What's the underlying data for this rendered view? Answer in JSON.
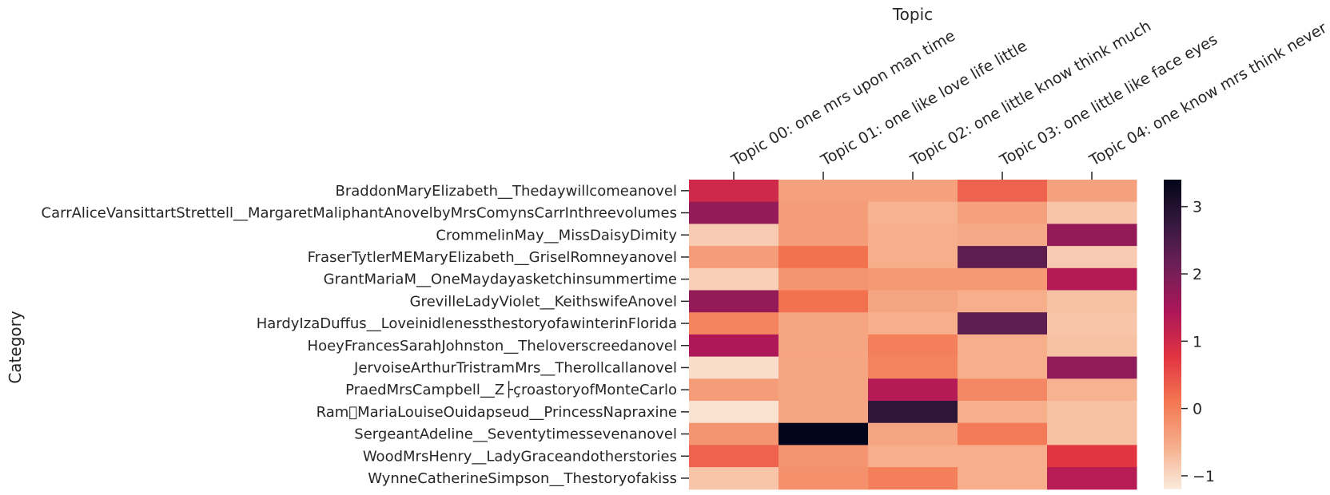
{
  "chart_data": {
    "type": "heatmap",
    "xlabel": "Topic",
    "ylabel": "Category",
    "columns": [
      "Topic 00: one mrs upon man time",
      "Topic 01: one like love life little",
      "Topic 02: one little know think much",
      "Topic 03: one little like face eyes",
      "Topic 04: one know mrs think never"
    ],
    "rows": [
      "BraddonMaryElizabeth__Thedaywillcomeanovel",
      "CarrAliceVansittartStrettell__MargaretMaliphantAnovelbyMrsComynsCarrInthreevolumes",
      "CrommelinMay__MissDaisyDimity",
      "FraserTytlerMEMaryElizabeth__GriselRomneyanovel",
      "GrantMariaM__OneMaydayasketchinsummertime",
      "GrevilleLadyViolet__KeithswifeAnovel",
      "HardyIzaDuffus__LoveinidlenessthestoryofawinterinFlorida",
      "HoeyFrancesSarahJohnston__Theloverscreedanovel",
      "JervoiseArthurTristramMrs__Therollcallanovel",
      "PraedMrsCampbell__Z├çroastoryofMonteCarlo",
      "Ram\u0000MariaLouiseOuidapseud__PrincessNapraxine",
      "SergeantAdeline__Seventytimessevenanovel",
      "WoodMrsHenry__LadyGraceandotherstories",
      "WynneCatherineSimpson__Thestoryofakiss"
    ],
    "values": [
      [
        1.0,
        -0.4,
        -0.4,
        0.3,
        -0.4
      ],
      [
        1.7,
        -0.35,
        -0.6,
        -0.4,
        -0.8
      ],
      [
        -0.85,
        -0.35,
        -0.55,
        -0.5,
        1.7
      ],
      [
        -0.35,
        0.15,
        -0.55,
        2.3,
        -0.85
      ],
      [
        -0.9,
        -0.25,
        -0.3,
        -0.3,
        1.35
      ],
      [
        1.7,
        0.15,
        -0.45,
        -0.55,
        -0.75
      ],
      [
        -0.05,
        -0.45,
        -0.55,
        2.3,
        -0.8
      ],
      [
        1.4,
        -0.45,
        0.0,
        -0.55,
        -0.75
      ],
      [
        -1.05,
        -0.45,
        -0.05,
        -0.55,
        1.75
      ],
      [
        -0.35,
        -0.45,
        1.35,
        -0.1,
        -0.6
      ],
      [
        -1.1,
        -0.45,
        2.85,
        -0.55,
        -0.75
      ],
      [
        -0.25,
        3.4,
        -0.45,
        0.05,
        -0.75
      ],
      [
        0.3,
        -0.25,
        -0.55,
        -0.55,
        0.75
      ],
      [
        -0.8,
        -0.2,
        0.0,
        -0.55,
        1.3
      ]
    ],
    "colorbar": {
      "min": -1.2,
      "max": 3.4,
      "ticks": [
        -1,
        0,
        1,
        2,
        3
      ],
      "tick_labels": [
        "−1",
        "0",
        "1",
        "2",
        "3"
      ]
    },
    "colormap": "rocket_r",
    "colormap_stops": [
      "#faebdd",
      "#f6ad8a",
      "#f37651",
      "#e13342",
      "#ad1759",
      "#701f57",
      "#35193e",
      "#03051a"
    ]
  }
}
